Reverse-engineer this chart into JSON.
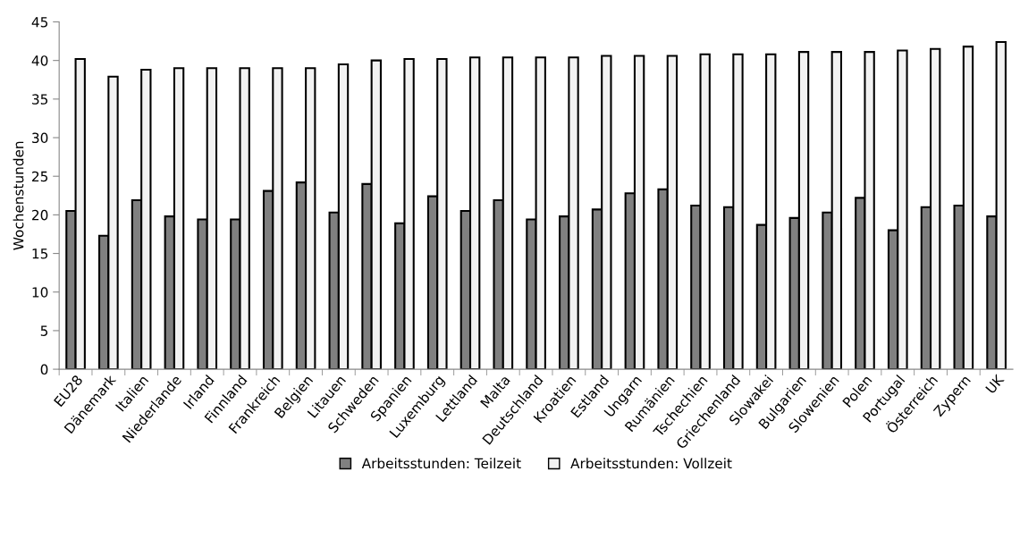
{
  "chart_data": {
    "type": "bar",
    "ylabel": "Wochenstunden",
    "categories": [
      "EU28",
      "Dänemark",
      "Italien",
      "Niederlande",
      "Irland",
      "Finnland",
      "Frankreich",
      "Belgien",
      "Litauen",
      "Schweden",
      "Spanien",
      "Luxemburg",
      "Lettland",
      "Malta",
      "Deutschland",
      "Kroatien",
      "Estland",
      "Ungarn",
      "Rumänien",
      "Tschechien",
      "Griechenland",
      "Slowakei",
      "Bulgarien",
      "Slowenien",
      "Polen",
      "Portugal",
      "Österreich",
      "Zypern",
      "UK"
    ],
    "series": [
      {
        "name": "Arbeitsstunden: Teilzeit",
        "color": "#808080",
        "values": [
          20.5,
          17.3,
          21.9,
          19.8,
          19.4,
          19.4,
          23.1,
          24.2,
          20.3,
          24.0,
          18.9,
          22.4,
          20.5,
          21.9,
          19.4,
          19.8,
          20.7,
          22.8,
          23.3,
          21.2,
          21.0,
          18.7,
          19.6,
          20.3,
          22.2,
          18.0,
          21.0,
          21.2,
          19.8
        ]
      },
      {
        "name": "Arbeitsstunden: Vollzeit",
        "color": "#f2f2f2",
        "values": [
          40.2,
          37.9,
          38.8,
          39.0,
          39.0,
          39.0,
          39.0,
          39.0,
          39.5,
          40.0,
          40.2,
          40.2,
          40.4,
          40.4,
          40.4,
          40.4,
          40.6,
          40.6,
          40.6,
          40.8,
          40.8,
          40.8,
          41.1,
          41.1,
          41.1,
          41.3,
          41.5,
          41.8,
          42.4
        ]
      }
    ],
    "ylim": [
      0,
      45
    ],
    "yticks": [
      0,
      5,
      10,
      15,
      20,
      25,
      30,
      35,
      40,
      45
    ],
    "grid": false,
    "legend": "bottom"
  }
}
